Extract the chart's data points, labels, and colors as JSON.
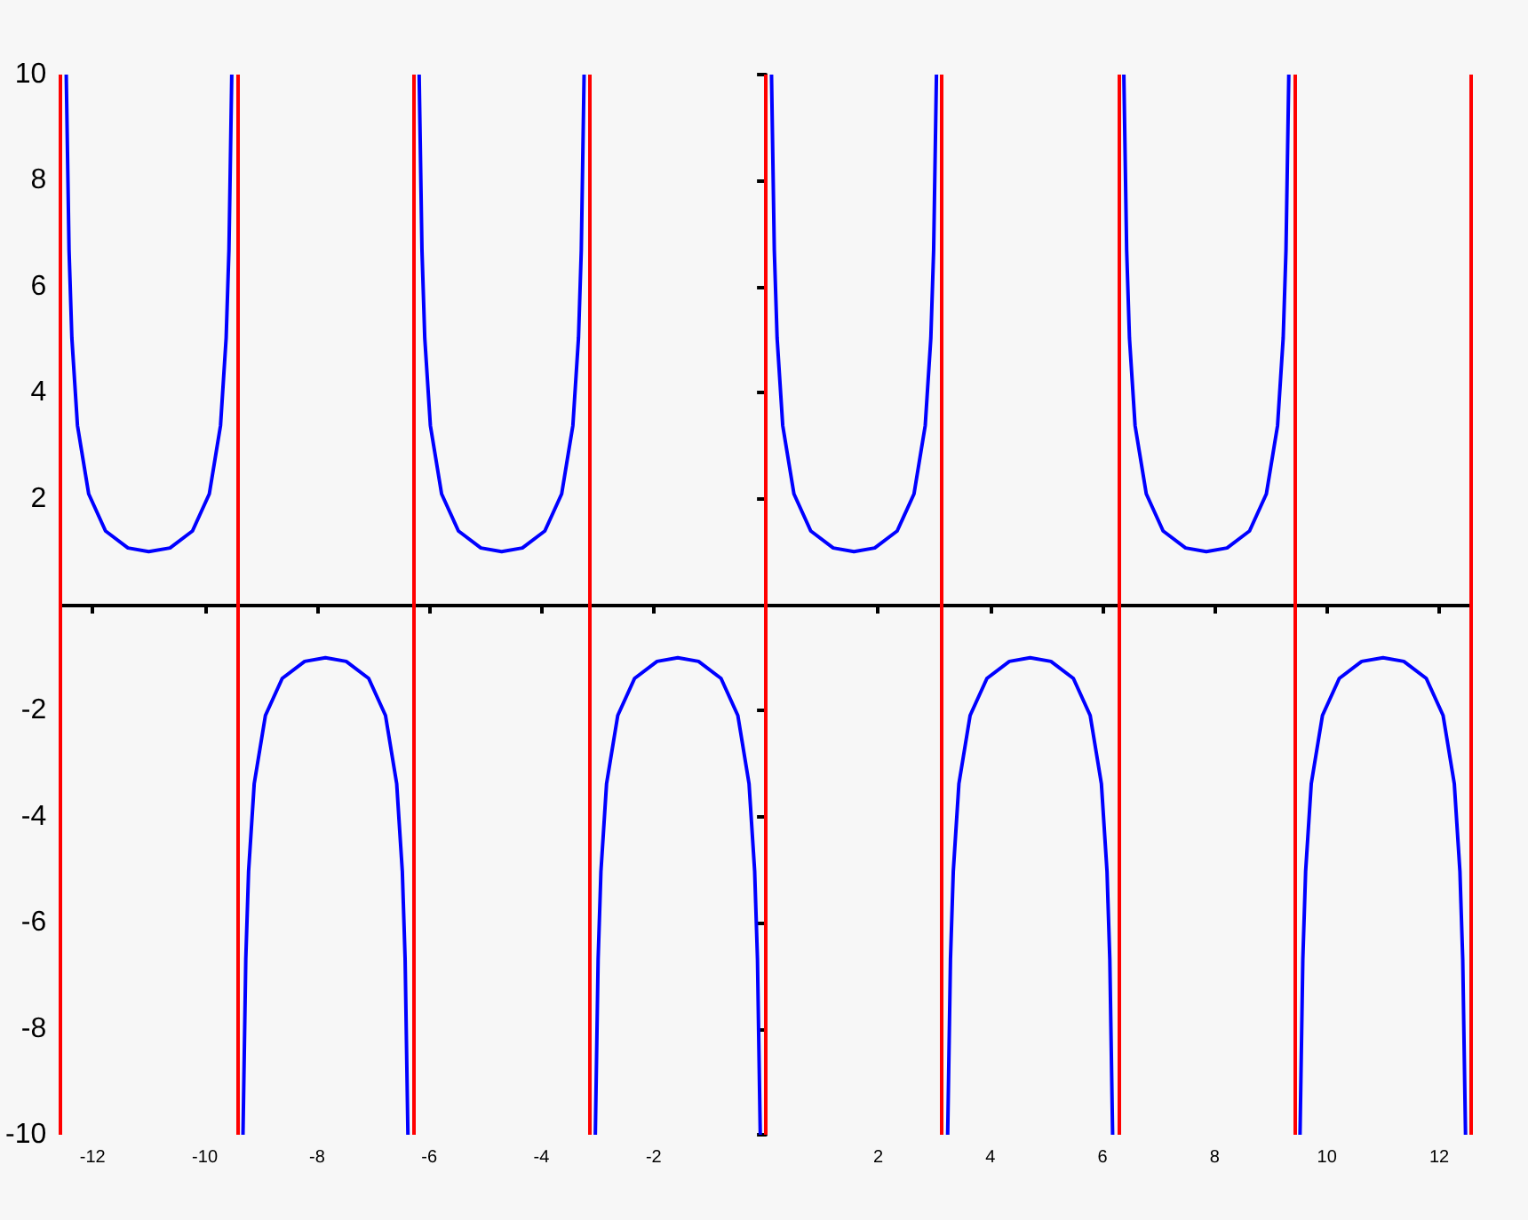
{
  "chart_data": {
    "type": "line",
    "xlim": [
      -12.57,
      12.57
    ],
    "ylim": [
      -10,
      10
    ],
    "xticks": [
      -12,
      -10,
      -8,
      -6,
      -4,
      -2,
      2,
      4,
      6,
      8,
      10,
      12
    ],
    "yticks": [
      -10,
      -8,
      -6,
      -4,
      -2,
      2,
      4,
      6,
      8,
      10
    ],
    "grid": false,
    "marker": "none",
    "line_style": "solid",
    "series": [
      {
        "color": "#0000ff",
        "x": [
          -12.47,
          -12.42,
          -12.37,
          -12.27,
          -12.07,
          -11.77,
          -11.37,
          -11.0,
          -10.62,
          -10.22,
          -9.92,
          -9.72,
          -9.62,
          -9.57,
          -9.52
        ],
        "values": [
          10,
          6.69,
          5.03,
          3.38,
          2.09,
          1.39,
          1.07,
          1,
          1.07,
          1.39,
          2.09,
          3.38,
          5.03,
          6.69,
          10
        ]
      },
      {
        "color": "#0000ff",
        "x": [
          -9.32,
          -9.27,
          -9.22,
          -9.12,
          -8.92,
          -8.62,
          -8.22,
          -7.85,
          -7.48,
          -7.08,
          -6.78,
          -6.58,
          -6.48,
          -6.43,
          -6.38
        ],
        "values": [
          -10,
          -6.69,
          -5.03,
          -3.38,
          -2.09,
          -1.39,
          -1.07,
          -1,
          -1.07,
          -1.39,
          -2.09,
          -3.38,
          -5.03,
          -6.69,
          -10
        ]
      },
      {
        "color": "#0000ff",
        "x": [
          -6.18,
          -6.13,
          -6.08,
          -5.98,
          -5.78,
          -5.48,
          -5.08,
          -4.71,
          -4.34,
          -3.94,
          -3.64,
          -3.44,
          -3.34,
          -3.29,
          -3.24
        ],
        "values": [
          10,
          6.69,
          5.03,
          3.38,
          2.09,
          1.39,
          1.07,
          1,
          1.07,
          1.39,
          2.09,
          3.38,
          5.03,
          6.69,
          10
        ]
      },
      {
        "color": "#0000ff",
        "x": [
          -3.04,
          -2.99,
          -2.94,
          -2.84,
          -2.64,
          -2.34,
          -1.94,
          -1.57,
          -1.2,
          -0.8,
          -0.5,
          -0.3,
          -0.2,
          -0.15,
          -0.1
        ],
        "values": [
          -10,
          -6.69,
          -5.03,
          -3.38,
          -2.09,
          -1.39,
          -1.07,
          -1,
          -1.07,
          -1.39,
          -2.09,
          -3.38,
          -5.03,
          -6.69,
          -10
        ]
      },
      {
        "color": "#0000ff",
        "x": [
          0.1,
          0.15,
          0.2,
          0.3,
          0.5,
          0.8,
          1.2,
          1.57,
          1.94,
          2.34,
          2.64,
          2.84,
          2.94,
          2.99,
          3.04
        ],
        "values": [
          10,
          6.69,
          5.03,
          3.38,
          2.09,
          1.39,
          1.07,
          1,
          1.07,
          1.39,
          2.09,
          3.38,
          5.03,
          6.69,
          10
        ]
      },
      {
        "color": "#0000ff",
        "x": [
          3.24,
          3.29,
          3.34,
          3.44,
          3.64,
          3.94,
          4.34,
          4.71,
          5.08,
          5.48,
          5.78,
          5.98,
          6.08,
          6.13,
          6.18
        ],
        "values": [
          -10,
          -6.69,
          -5.03,
          -3.38,
          -2.09,
          -1.39,
          -1.07,
          -1,
          -1.07,
          -1.39,
          -2.09,
          -3.38,
          -5.03,
          -6.69,
          -10
        ]
      },
      {
        "color": "#0000ff",
        "x": [
          6.38,
          6.43,
          6.48,
          6.58,
          6.78,
          7.08,
          7.48,
          7.85,
          8.22,
          8.62,
          8.92,
          9.12,
          9.22,
          9.27,
          9.32
        ],
        "values": [
          10,
          6.69,
          5.03,
          3.38,
          2.09,
          1.39,
          1.07,
          1,
          1.07,
          1.39,
          2.09,
          3.38,
          5.03,
          6.69,
          10
        ]
      },
      {
        "color": "#0000ff",
        "x": [
          9.52,
          9.57,
          9.62,
          9.72,
          9.92,
          10.22,
          10.62,
          11.0,
          11.37,
          11.77,
          12.07,
          12.27,
          12.37,
          12.42,
          12.47
        ],
        "values": [
          -10,
          -6.69,
          -5.03,
          -3.38,
          -2.09,
          -1.39,
          -1.07,
          -1,
          -1.07,
          -1.39,
          -2.09,
          -3.38,
          -5.03,
          -6.69,
          -10
        ]
      }
    ],
    "ref_lines": [
      {
        "axis": "x",
        "value": -12.57,
        "color": "#ff0000"
      },
      {
        "axis": "x",
        "value": -9.42,
        "color": "#ff0000"
      },
      {
        "axis": "x",
        "value": -6.28,
        "color": "#ff0000"
      },
      {
        "axis": "x",
        "value": -3.14,
        "color": "#ff0000"
      },
      {
        "axis": "x",
        "value": 0,
        "color": "#ff0000"
      },
      {
        "axis": "x",
        "value": 3.14,
        "color": "#ff0000"
      },
      {
        "axis": "x",
        "value": 6.28,
        "color": "#ff0000"
      },
      {
        "axis": "x",
        "value": 9.42,
        "color": "#ff0000"
      },
      {
        "axis": "x",
        "value": 12.57,
        "color": "#ff0000"
      }
    ]
  }
}
